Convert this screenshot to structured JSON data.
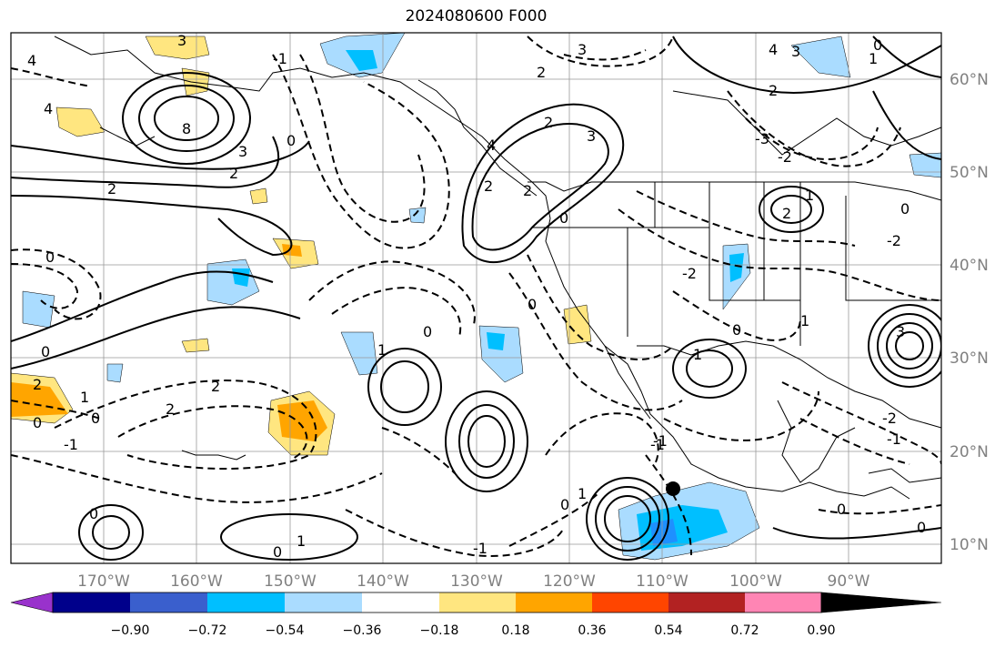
{
  "title": "2024080600 F000",
  "map": {
    "lon_labels": [
      "170°W",
      "160°W",
      "150°W",
      "140°W",
      "130°W",
      "120°W",
      "110°W",
      "100°W",
      "90°W"
    ],
    "lat_labels": [
      "60°N",
      "50°N",
      "40°N",
      "30°N",
      "20°N",
      "10°N"
    ],
    "contour_labels": [
      "4",
      "4",
      "3",
      "8",
      "3",
      "2",
      "2",
      "-1",
      "0",
      "0",
      "0",
      "1",
      "2",
      "2",
      "2",
      "0",
      "0",
      "-1",
      "1",
      "3",
      "2",
      "4",
      "2",
      "0",
      "2",
      "2",
      "3",
      "-2",
      "-1",
      "0",
      "1",
      "1",
      "3",
      "0",
      "4",
      "3",
      "0",
      "1",
      "2",
      "2",
      "-3",
      "-2",
      "1",
      "1",
      "0",
      "0",
      "-1",
      "0",
      "1",
      "-1",
      "-2",
      "0",
      "0",
      "-1",
      "-2",
      "0",
      "0"
    ],
    "colors": {
      "negative_high": "#1e90ff",
      "negative_mid": "#00bfff",
      "negative_low": "#aadcff",
      "positive_low": "#ffe680",
      "positive_mid": "#ffa500",
      "contour": "#000000",
      "grid": "#999999"
    }
  },
  "colorbar": {
    "tick_labels": [
      "−0.90",
      "−0.72",
      "−0.54",
      "−0.36",
      "−0.18",
      "0.18",
      "0.36",
      "0.54",
      "0.72",
      "0.90"
    ],
    "segment_colors": [
      "#9932cc",
      "#00008b",
      "#3a5fcd",
      "#00bfff",
      "#aadcff",
      "#ffffff",
      "#ffe680",
      "#ffa500",
      "#ff4500",
      "#b22222",
      "#ff85b4"
    ]
  }
}
